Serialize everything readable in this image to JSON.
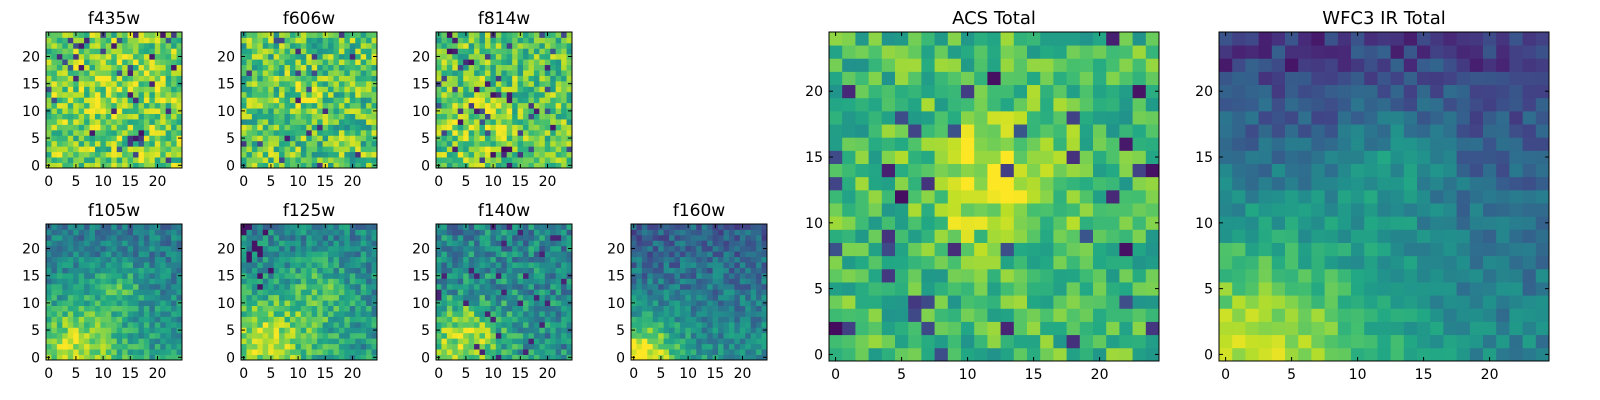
{
  "chart_data": [
    {
      "type": "heatmap",
      "title": "f435w",
      "xlabel": "",
      "ylabel": "",
      "x_ticks": [
        0,
        5,
        10,
        15,
        20
      ],
      "y_ticks": [
        0,
        5,
        10,
        15,
        20
      ],
      "xlim": [
        -0.5,
        24.5
      ],
      "ylim": [
        -0.5,
        24.5
      ],
      "colormap": "viridis",
      "grid_size": [
        25,
        25
      ],
      "pattern": "noisy, bright overall with scattered dark pixels"
    },
    {
      "type": "heatmap",
      "title": "f606w",
      "xlabel": "",
      "ylabel": "",
      "x_ticks": [
        0,
        5,
        10,
        15,
        20
      ],
      "y_ticks": [
        0,
        5,
        10,
        15,
        20
      ],
      "xlim": [
        -0.5,
        24.5
      ],
      "ylim": [
        -0.5,
        24.5
      ],
      "colormap": "viridis",
      "grid_size": [
        25,
        25
      ],
      "pattern": "noisy with a slight bright core near center"
    },
    {
      "type": "heatmap",
      "title": "f814w",
      "xlabel": "",
      "ylabel": "",
      "x_ticks": [
        0,
        5,
        10,
        15,
        20
      ],
      "y_ticks": [
        0,
        5,
        10,
        15,
        20
      ],
      "xlim": [
        -0.5,
        24.5
      ],
      "ylim": [
        -0.5,
        24.5
      ],
      "colormap": "viridis",
      "grid_size": [
        25,
        25
      ],
      "pattern": "noisy with scattered dark pixels"
    },
    {
      "type": "heatmap",
      "title": "f105w",
      "xlabel": "",
      "ylabel": "",
      "x_ticks": [
        0,
        5,
        10,
        15,
        20
      ],
      "y_ticks": [
        0,
        5,
        10,
        15,
        20
      ],
      "xlim": [
        -0.5,
        24.5
      ],
      "ylim": [
        -0.5,
        24.5
      ],
      "colormap": "viridis",
      "grid_size": [
        25,
        25
      ],
      "pattern": "bright toward lower-left, darker upper region"
    },
    {
      "type": "heatmap",
      "title": "f125w",
      "xlabel": "",
      "ylabel": "",
      "x_ticks": [
        0,
        5,
        10,
        15,
        20
      ],
      "y_ticks": [
        0,
        5,
        10,
        15,
        20
      ],
      "xlim": [
        -0.5,
        24.5
      ],
      "ylim": [
        -0.5,
        24.5
      ],
      "colormap": "viridis",
      "grid_size": [
        25,
        25
      ],
      "pattern": "bright lower-left and central band, dark pixels upper-left"
    },
    {
      "type": "heatmap",
      "title": "f140w",
      "xlabel": "",
      "ylabel": "",
      "x_ticks": [
        0,
        5,
        10,
        15,
        20
      ],
      "y_ticks": [
        0,
        5,
        10,
        15,
        20
      ],
      "xlim": [
        -0.5,
        24.5
      ],
      "ylim": [
        -0.5,
        24.5
      ],
      "colormap": "viridis",
      "grid_size": [
        25,
        25
      ],
      "pattern": "bright lower-left, mixed noise elsewhere"
    },
    {
      "type": "heatmap",
      "title": "f160w",
      "xlabel": "",
      "ylabel": "",
      "x_ticks": [
        0,
        5,
        10,
        15,
        20
      ],
      "y_ticks": [
        0,
        5,
        10,
        15,
        20
      ],
      "xlim": [
        -0.5,
        24.5
      ],
      "ylim": [
        -0.5,
        24.5
      ],
      "colormap": "viridis",
      "grid_size": [
        25,
        25
      ],
      "pattern": "brightest at bottom-left corner, darker top"
    },
    {
      "type": "heatmap",
      "title": "ACS Total",
      "xlabel": "",
      "ylabel": "",
      "x_ticks": [
        0,
        5,
        10,
        15,
        20
      ],
      "y_ticks": [
        0,
        5,
        10,
        15,
        20
      ],
      "xlim": [
        -0.5,
        24.5
      ],
      "ylim": [
        -0.5,
        24.5
      ],
      "colormap": "viridis",
      "grid_size": [
        25,
        25
      ],
      "pattern": "bright core around x 10-15, y 10-15 with scattered dark pixels"
    },
    {
      "type": "heatmap",
      "title": "WFC3 IR Total",
      "xlabel": "",
      "ylabel": "",
      "x_ticks": [
        0,
        5,
        10,
        15,
        20
      ],
      "y_ticks": [
        0,
        5,
        10,
        15,
        20
      ],
      "xlim": [
        -0.5,
        24.5
      ],
      "ylim": [
        -0.5,
        24.5
      ],
      "colormap": "viridis",
      "grid_size": [
        25,
        25
      ],
      "pattern": "bright bottom-left gradient, dark top rows"
    }
  ]
}
